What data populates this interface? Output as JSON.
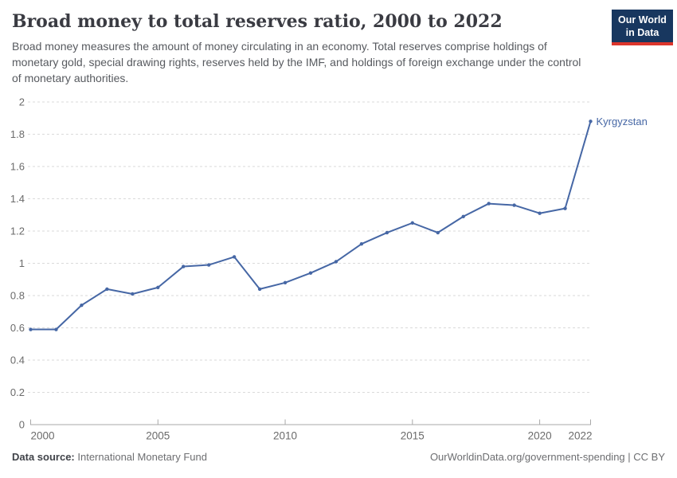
{
  "header": {
    "title": "Broad money to total reserves ratio, 2000 to 2022",
    "subtitle": "Broad money measures the amount of money circulating in an economy. Total reserves comprise holdings of monetary gold, special drawing rights, reserves held by the IMF, and holdings of foreign exchange under the control of monetary authorities.",
    "logo": {
      "line1": "Our World",
      "line2": "in Data",
      "bg_color": "#18375f",
      "accent_color": "#dc352b"
    }
  },
  "chart_data": {
    "type": "line",
    "title": "Broad money to total reserves ratio, 2000 to 2022",
    "x": [
      2000,
      2001,
      2002,
      2003,
      2004,
      2005,
      2006,
      2007,
      2008,
      2009,
      2010,
      2011,
      2012,
      2013,
      2014,
      2015,
      2016,
      2017,
      2018,
      2019,
      2020,
      2021,
      2022
    ],
    "series": [
      {
        "name": "Kyrgyzstan",
        "color": "#4667a5",
        "values": [
          0.59,
          0.59,
          0.74,
          0.84,
          0.81,
          0.85,
          0.98,
          0.99,
          1.04,
          0.84,
          0.88,
          0.94,
          1.01,
          1.12,
          1.19,
          1.25,
          1.19,
          1.29,
          1.37,
          1.36,
          1.31,
          1.34,
          1.88
        ]
      }
    ],
    "xlim": [
      2000,
      2022
    ],
    "ylim": [
      0,
      2
    ],
    "xticks": [
      2000,
      2005,
      2010,
      2015,
      2020,
      2022
    ],
    "yticks": [
      0,
      0.2,
      0.4,
      0.6,
      0.8,
      1,
      1.2,
      1.4,
      1.6,
      1.8,
      2
    ],
    "grid": "horizontal-dashed",
    "legend_position": "end-of-line-label",
    "end_label": "Kyrgyzstan",
    "colors": {
      "gridline": "#dadada",
      "axis": "#a8a8a8",
      "tick_label": "#6b6b6b"
    }
  },
  "footer": {
    "source_label": "Data source:",
    "source_value": "International Monetary Fund",
    "attribution": "OurWorldinData.org/government-spending | CC BY"
  }
}
